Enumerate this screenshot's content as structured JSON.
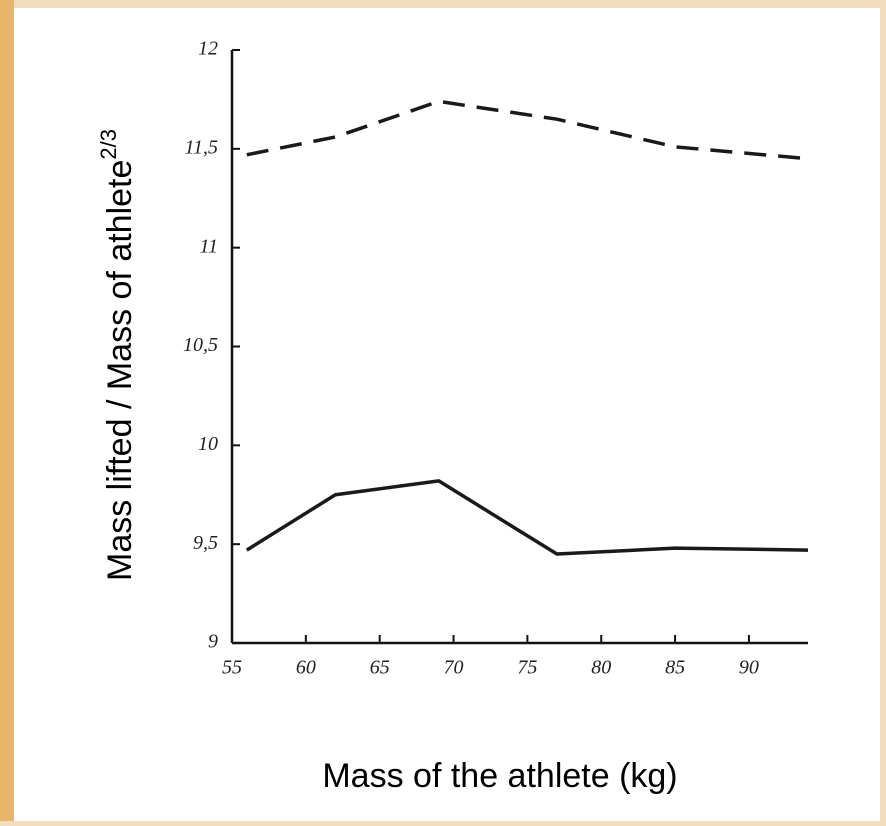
{
  "chart_data": {
    "type": "line",
    "x_label": "Mass of the athlete (kg)",
    "y_label": "Mass lifted / Mass of athlete",
    "y_label_superscript": "2/3",
    "x": [
      56,
      62,
      69,
      77,
      85,
      94
    ],
    "series": [
      {
        "color": "#1a1a1a",
        "style": "dashed",
        "values": [
          11.47,
          11.56,
          11.74,
          11.65,
          11.51,
          11.45
        ]
      },
      {
        "color": "#1a1a1a",
        "style": "solid",
        "values": [
          9.47,
          9.75,
          9.82,
          9.45,
          9.48,
          9.47
        ]
      }
    ],
    "xlim": [
      55,
      94
    ],
    "ylim": [
      9,
      12
    ],
    "xticks": [
      55,
      60,
      65,
      70,
      75,
      80,
      85,
      90
    ],
    "yticks": [
      9,
      {
        "value": 9.5,
        "label": "9,5"
      },
      10,
      {
        "value": 10.5,
        "label": "10,5"
      },
      11,
      {
        "value": 11.5,
        "label": "11,5"
      },
      12
    ],
    "grid": false
  }
}
